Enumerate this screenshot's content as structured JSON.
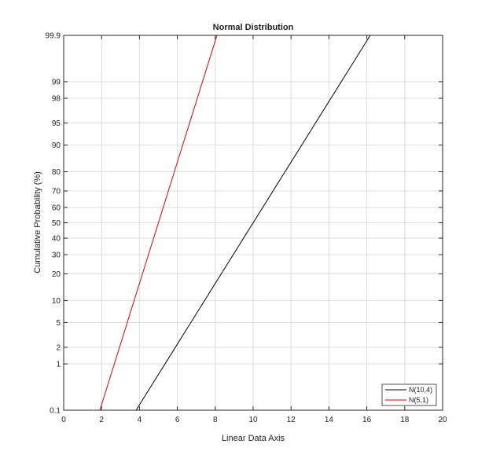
{
  "chart_data": {
    "type": "line",
    "title": "Normal Distribution",
    "xlabel": "Linear Data Axis",
    "ylabel": "Cumulative Probability (%)",
    "xlim": [
      0,
      20
    ],
    "x_ticks": [
      0,
      2,
      4,
      6,
      8,
      10,
      12,
      14,
      16,
      18,
      20
    ],
    "y_scale": "normal-probability",
    "ylim": [
      0.1,
      99.9
    ],
    "y_ticks": [
      "0.1",
      "1",
      "2",
      "5",
      "10",
      "20",
      "30",
      "40",
      "50",
      "60",
      "70",
      "80",
      "90",
      "95",
      "98",
      "99",
      "99.9"
    ],
    "grid": true,
    "legend_position": "bottom-right",
    "series": [
      {
        "name": "N(10,4)",
        "color": "#000000",
        "mean": 10,
        "sd": 2,
        "x": [
          3.82,
          16.18
        ],
        "y": [
          0.1,
          99.9
        ]
      },
      {
        "name": "N(5,1)",
        "color": "#e00000",
        "mean": 5,
        "sd": 1,
        "x": [
          1.91,
          8.09
        ],
        "y": [
          0.1,
          99.9
        ]
      }
    ]
  }
}
